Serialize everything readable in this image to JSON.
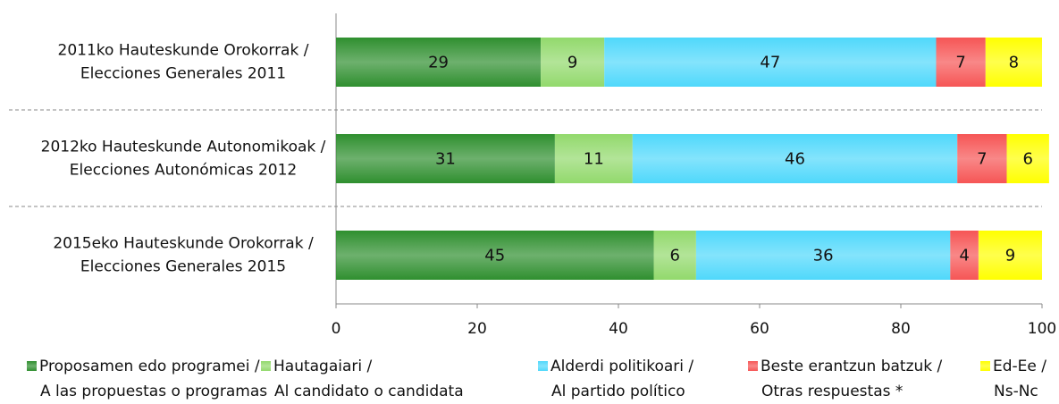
{
  "chart_data": {
    "type": "stacked-bar-horizontal",
    "categories": [
      [
        "2011ko Hauteskunde Orokorrak /",
        "Elecciones Generales 2011"
      ],
      [
        "2012ko Hauteskunde Autonomikoak /",
        "Elecciones Autonómicas 2012"
      ],
      [
        "2015eko Hauteskunde Orokorrak /",
        "Elecciones Generales 2015"
      ]
    ],
    "series": [
      {
        "name": [
          "Proposamen edo programei /",
          "A las propuestas o programas"
        ],
        "color": "#2f8f2f",
        "values": [
          29,
          31,
          45
        ]
      },
      {
        "name": [
          "Hautagaiari /",
          "Al candidato o candidata"
        ],
        "color": "#92d96c",
        "values": [
          9,
          11,
          6
        ]
      },
      {
        "name": [
          "Alderdi politikoari /",
          "Al partido político"
        ],
        "color": "#4fd8fb",
        "values": [
          47,
          46,
          36
        ]
      },
      {
        "name": [
          "Beste erantzun batzuk /",
          "Otras respuestas *"
        ],
        "color": "#f65555",
        "values": [
          7,
          7,
          4
        ]
      },
      {
        "name": [
          "Ed-Ee /",
          "Ns-Nc"
        ],
        "color": "#ffff00",
        "values": [
          8,
          6,
          9
        ]
      }
    ],
    "xlim": [
      0,
      100
    ],
    "xticks": [
      0,
      20,
      40,
      60,
      80,
      100
    ]
  }
}
